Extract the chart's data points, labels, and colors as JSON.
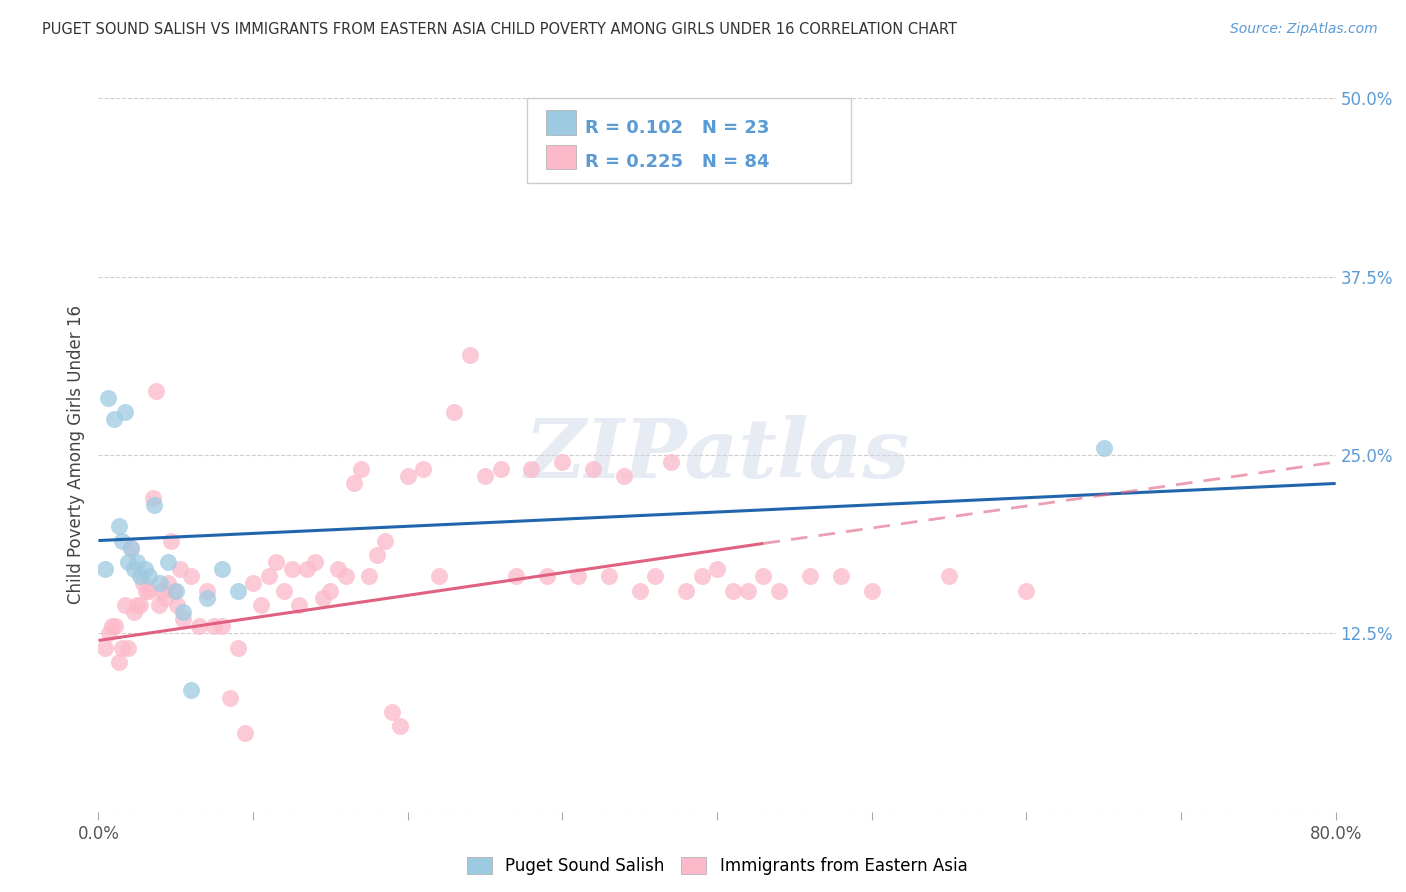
{
  "title": "PUGET SOUND SALISH VS IMMIGRANTS FROM EASTERN ASIA CHILD POVERTY AMONG GIRLS UNDER 16 CORRELATION CHART",
  "source": "Source: ZipAtlas.com",
  "ylabel": "Child Poverty Among Girls Under 16",
  "xlim": [
    0.0,
    0.8
  ],
  "ylim": [
    0.0,
    0.5
  ],
  "xticks": [
    0.0,
    0.1,
    0.2,
    0.3,
    0.4,
    0.5,
    0.6,
    0.7,
    0.8
  ],
  "yticks_right": [
    0.0,
    0.125,
    0.25,
    0.375,
    0.5
  ],
  "yticklabels_right": [
    "",
    "12.5%",
    "25.0%",
    "37.5%",
    "50.0%"
  ],
  "background_color": "#ffffff",
  "grid_color": "#c8c8c8",
  "watermark": "ZIPatlas",
  "legend_r1": "R = 0.102",
  "legend_n1": "N = 23",
  "legend_r2": "R = 0.225",
  "legend_n2": "N = 84",
  "color_blue": "#9ecae1",
  "color_pink": "#fcb9c9",
  "color_blue_line": "#2166ac",
  "color_pink_line": "#e06080",
  "series1_label": "Puget Sound Salish",
  "series2_label": "Immigrants from Eastern Asia",
  "series1_x": [
    0.004,
    0.006,
    0.01,
    0.013,
    0.015,
    0.017,
    0.019,
    0.021,
    0.023,
    0.025,
    0.027,
    0.03,
    0.033,
    0.036,
    0.04,
    0.045,
    0.05,
    0.055,
    0.06,
    0.07,
    0.08,
    0.09,
    0.65
  ],
  "series1_y": [
    0.17,
    0.29,
    0.275,
    0.2,
    0.19,
    0.28,
    0.175,
    0.185,
    0.17,
    0.175,
    0.165,
    0.17,
    0.165,
    0.215,
    0.16,
    0.175,
    0.155,
    0.14,
    0.085,
    0.15,
    0.17,
    0.155,
    0.255
  ],
  "series2_x": [
    0.004,
    0.007,
    0.009,
    0.011,
    0.013,
    0.015,
    0.017,
    0.019,
    0.021,
    0.023,
    0.025,
    0.027,
    0.029,
    0.031,
    0.033,
    0.035,
    0.037,
    0.039,
    0.041,
    0.043,
    0.045,
    0.047,
    0.049,
    0.051,
    0.053,
    0.055,
    0.06,
    0.065,
    0.07,
    0.075,
    0.08,
    0.085,
    0.09,
    0.095,
    0.1,
    0.105,
    0.11,
    0.115,
    0.12,
    0.125,
    0.13,
    0.135,
    0.14,
    0.145,
    0.15,
    0.155,
    0.16,
    0.165,
    0.17,
    0.175,
    0.18,
    0.185,
    0.19,
    0.195,
    0.2,
    0.21,
    0.22,
    0.23,
    0.24,
    0.25,
    0.26,
    0.27,
    0.28,
    0.29,
    0.3,
    0.31,
    0.32,
    0.33,
    0.34,
    0.35,
    0.36,
    0.37,
    0.38,
    0.39,
    0.4,
    0.41,
    0.42,
    0.43,
    0.44,
    0.46,
    0.48,
    0.5,
    0.55,
    0.6
  ],
  "series2_y": [
    0.115,
    0.125,
    0.13,
    0.13,
    0.105,
    0.115,
    0.145,
    0.115,
    0.185,
    0.14,
    0.145,
    0.145,
    0.16,
    0.155,
    0.155,
    0.22,
    0.295,
    0.145,
    0.155,
    0.15,
    0.16,
    0.19,
    0.155,
    0.145,
    0.17,
    0.135,
    0.165,
    0.13,
    0.155,
    0.13,
    0.13,
    0.08,
    0.115,
    0.055,
    0.16,
    0.145,
    0.165,
    0.175,
    0.155,
    0.17,
    0.145,
    0.17,
    0.175,
    0.15,
    0.155,
    0.17,
    0.165,
    0.23,
    0.24,
    0.165,
    0.18,
    0.19,
    0.07,
    0.06,
    0.235,
    0.24,
    0.165,
    0.28,
    0.32,
    0.235,
    0.24,
    0.165,
    0.24,
    0.165,
    0.245,
    0.165,
    0.24,
    0.165,
    0.235,
    0.155,
    0.165,
    0.245,
    0.155,
    0.165,
    0.17,
    0.155,
    0.155,
    0.165,
    0.155,
    0.165,
    0.165,
    0.155,
    0.165,
    0.155
  ],
  "blue_line_x0": 0.0,
  "blue_line_x1": 0.8,
  "blue_line_y0": 0.19,
  "blue_line_y1": 0.23,
  "pink_line_solid_x0": 0.0,
  "pink_line_solid_x1": 0.43,
  "pink_line_solid_y0": 0.12,
  "pink_line_solid_y1": 0.188,
  "pink_line_dash_x0": 0.43,
  "pink_line_dash_x1": 0.8,
  "pink_line_dash_y0": 0.188,
  "pink_line_dash_y1": 0.245
}
